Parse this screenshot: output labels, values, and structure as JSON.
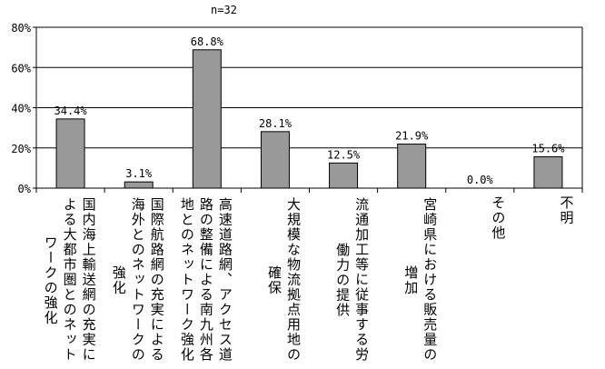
{
  "chart_data": {
    "type": "bar",
    "note": "n=32",
    "categories": [
      "国内海上輸送網の充実による大都市圏とのネットワークの強化",
      "国際航路網の充実による海外とのネットワークの強化",
      "高速道路網、アクセス道路の整備による南九州各地とのネットワーク強化",
      "大規模な物流拠点用地の確保",
      "流通加工等に従事する労働力の提供",
      "宮崎県における販売量の増加",
      "その他",
      "不明"
    ],
    "values": [
      34.4,
      3.1,
      68.8,
      28.1,
      12.5,
      21.9,
      0.0,
      15.6
    ],
    "data_labels": [
      "34.4%",
      "3.1%",
      "68.8%",
      "28.1%",
      "12.5%",
      "21.9%",
      "0.0%",
      "15.6%"
    ],
    "ylim": [
      0,
      80
    ],
    "yticks": [
      "0%",
      "20%",
      "40%",
      "60%",
      "80%"
    ],
    "grid": true,
    "bar_color": "#999999"
  }
}
